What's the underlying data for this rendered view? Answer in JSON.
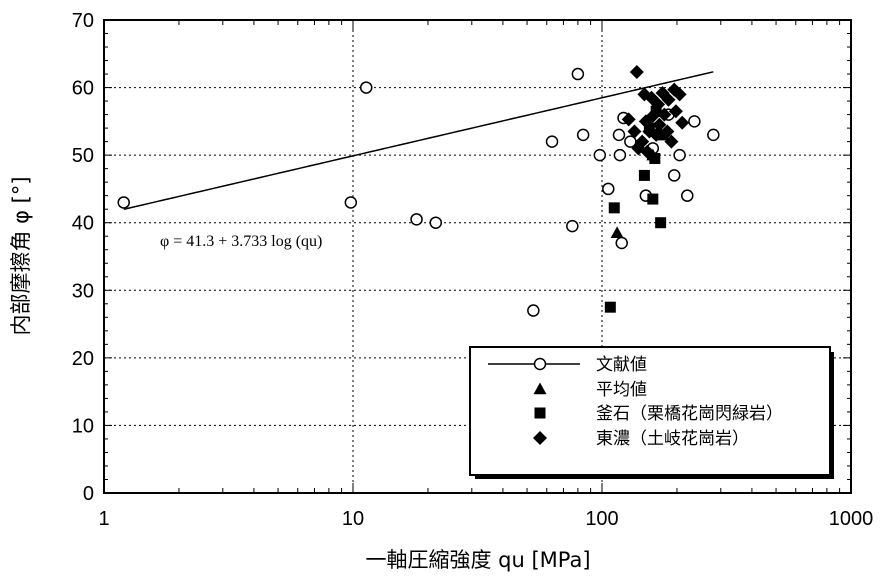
{
  "chart_data": {
    "type": "scatter",
    "xlabel": "一軸圧縮強度 qu [MPa]",
    "ylabel": "内部摩擦角 φ [°]",
    "xscale": "log",
    "xlim": [
      1,
      1000
    ],
    "ylim": [
      0,
      70
    ],
    "xticks": [
      {
        "value": 1,
        "label": "1"
      },
      {
        "value": 10,
        "label": "10"
      },
      {
        "value": 100,
        "label": "100"
      },
      {
        "value": 1000,
        "label": "1000"
      }
    ],
    "yticks": [
      {
        "value": 0,
        "label": "0"
      },
      {
        "value": 10,
        "label": "10"
      },
      {
        "value": 20,
        "label": "20"
      },
      {
        "value": 30,
        "label": "30"
      },
      {
        "value": 40,
        "label": "40"
      },
      {
        "value": 50,
        "label": "50"
      },
      {
        "value": 60,
        "label": "60"
      },
      {
        "value": 70,
        "label": "70"
      }
    ],
    "grid": true,
    "legend_position": "bottom-right",
    "equation": "φ = 41.3 + 3.733 log (qu)",
    "regression": {
      "intercept": 41.3,
      "slope": 3.733,
      "x_range": [
        1.2,
        280
      ]
    },
    "series": [
      {
        "name": "文献値",
        "marker": "circle-open",
        "points": [
          [
            1.2,
            43
          ],
          [
            9.8,
            43
          ],
          [
            11.3,
            60
          ],
          [
            18,
            40.5
          ],
          [
            21.5,
            40
          ],
          [
            53,
            27
          ],
          [
            63,
            52
          ],
          [
            76,
            39.5
          ],
          [
            80,
            62
          ],
          [
            84,
            53
          ],
          [
            98,
            50
          ],
          [
            106,
            45
          ],
          [
            117,
            53
          ],
          [
            118,
            50
          ],
          [
            120,
            37
          ],
          [
            122,
            55.5
          ],
          [
            130,
            52
          ],
          [
            150,
            44
          ],
          [
            160,
            51
          ],
          [
            185,
            56
          ],
          [
            195,
            47
          ],
          [
            205,
            50
          ],
          [
            220,
            44
          ],
          [
            235,
            55
          ],
          [
            280,
            53
          ]
        ]
      },
      {
        "name": "平均値",
        "marker": "triangle",
        "points": [
          [
            115,
            38.5
          ],
          [
            160,
            50
          ]
        ]
      },
      {
        "name": "釜石（栗橋花崗閃緑岩）",
        "marker": "square",
        "points": [
          [
            108,
            27.5
          ],
          [
            112,
            42.2
          ],
          [
            148,
            47
          ],
          [
            160,
            43.5
          ],
          [
            163,
            49.5
          ],
          [
            172,
            40
          ],
          [
            155,
            54
          ],
          [
            165,
            56.5
          ],
          [
            175,
            53
          ]
        ]
      },
      {
        "name": "東濃（土岐花崗岩）",
        "marker": "diamond",
        "points": [
          [
            138,
            62.3
          ],
          [
            148,
            59
          ],
          [
            158,
            58.5
          ],
          [
            168,
            57.5
          ],
          [
            175,
            59.2
          ],
          [
            185,
            58.2
          ],
          [
            195,
            59.7
          ],
          [
            205,
            59
          ],
          [
            128,
            55.3
          ],
          [
            135,
            53.5
          ],
          [
            145,
            52
          ],
          [
            150,
            55
          ],
          [
            155,
            53.5
          ],
          [
            160,
            55.8
          ],
          [
            165,
            53
          ],
          [
            170,
            54.5
          ],
          [
            178,
            56
          ],
          [
            183,
            53.5
          ],
          [
            190,
            52
          ],
          [
            198,
            56.5
          ],
          [
            210,
            54.8
          ],
          [
            140,
            51
          ],
          [
            152,
            50.5
          ]
        ]
      }
    ]
  }
}
